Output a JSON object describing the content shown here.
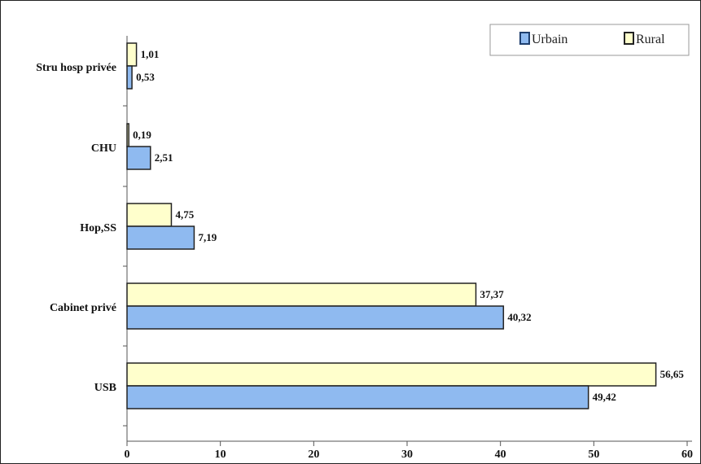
{
  "chart_data": {
    "type": "bar",
    "orientation": "horizontal",
    "categories": [
      "USB",
      "Cabinet privé",
      "Hop,SS",
      "CHU",
      "Stru hosp privée"
    ],
    "series": [
      {
        "name": "Urbain",
        "values": [
          49.42,
          40.32,
          7.19,
          2.51,
          0.53
        ],
        "labels": [
          "49,42",
          "40,32",
          "7,19",
          "2,51",
          "0,53"
        ],
        "color": "#8fbaf0"
      },
      {
        "name": "Rural",
        "values": [
          56.65,
          37.37,
          4.75,
          0.19,
          1.01
        ],
        "labels": [
          "56,65",
          "37,37",
          "4,75",
          "0,19",
          "1,01"
        ],
        "color": "#ffffcc"
      }
    ],
    "xlim": [
      0,
      60
    ],
    "xticks": [
      "0",
      "10",
      "20",
      "30",
      "40",
      "50",
      "60"
    ],
    "title": "",
    "xlabel": "",
    "ylabel": "",
    "grid": false,
    "legend_position": "top-right"
  }
}
